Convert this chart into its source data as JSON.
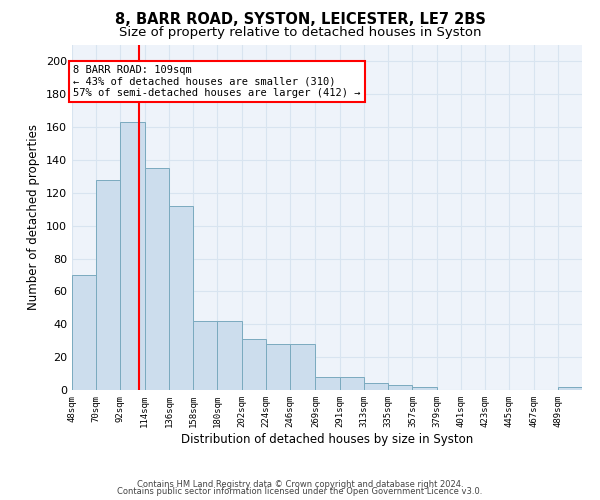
{
  "title": "8, BARR ROAD, SYSTON, LEICESTER, LE7 2BS",
  "subtitle": "Size of property relative to detached houses in Syston",
  "xlabel": "Distribution of detached houses by size in Syston",
  "ylabel": "Number of detached properties",
  "bar_color": "#ccdded",
  "bar_edge_color": "#7aaabf",
  "grid_color": "#d8e4f0",
  "background_color": "#eef3fa",
  "vline_x": 109,
  "vline_color": "red",
  "bin_edges": [
    48,
    70,
    92,
    114,
    136,
    158,
    180,
    202,
    224,
    246,
    269,
    291,
    313,
    335,
    357,
    379,
    401,
    423,
    445,
    467,
    489
  ],
  "bar_heights": [
    70,
    128,
    163,
    135,
    112,
    42,
    42,
    31,
    28,
    28,
    8,
    8,
    4,
    3,
    2,
    0,
    0,
    0,
    0,
    0,
    2
  ],
  "tick_labels": [
    "48sqm",
    "70sqm",
    "92sqm",
    "114sqm",
    "136sqm",
    "158sqm",
    "180sqm",
    "202sqm",
    "224sqm",
    "246sqm",
    "269sqm",
    "291sqm",
    "313sqm",
    "335sqm",
    "357sqm",
    "379sqm",
    "401sqm",
    "423sqm",
    "445sqm",
    "467sqm",
    "489sqm"
  ],
  "ylim": [
    0,
    210
  ],
  "yticks": [
    0,
    20,
    40,
    60,
    80,
    100,
    120,
    140,
    160,
    180,
    200
  ],
  "annotation_line1": "8 BARR ROAD: 109sqm",
  "annotation_line2": "← 43% of detached houses are smaller (310)",
  "annotation_line3": "57% of semi-detached houses are larger (412) →",
  "annotation_box_color": "white",
  "annotation_box_edge": "red",
  "footer_line1": "Contains HM Land Registry data © Crown copyright and database right 2024.",
  "footer_line2": "Contains public sector information licensed under the Open Government Licence v3.0.",
  "title_fontsize": 10.5,
  "subtitle_fontsize": 9.5,
  "tick_fontsize": 6.5,
  "ylabel_fontsize": 8.5,
  "xlabel_fontsize": 8.5,
  "annotation_fontsize": 7.5,
  "footer_fontsize": 6.0
}
